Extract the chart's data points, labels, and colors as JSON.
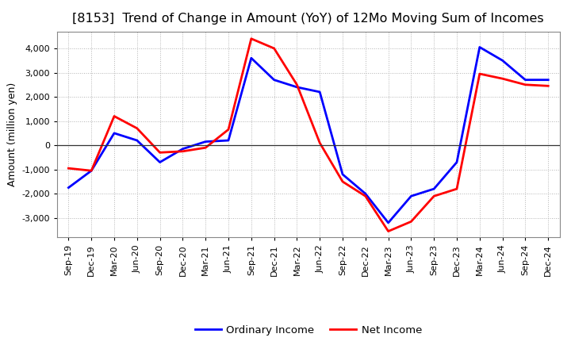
{
  "title": "[8153]  Trend of Change in Amount (YoY) of 12Mo Moving Sum of Incomes",
  "ylabel": "Amount (million yen)",
  "xlabel": "",
  "xlabels": [
    "Sep-19",
    "Dec-19",
    "Mar-20",
    "Jun-20",
    "Sep-20",
    "Dec-20",
    "Mar-21",
    "Jun-21",
    "Sep-21",
    "Dec-21",
    "Mar-22",
    "Jun-22",
    "Sep-22",
    "Dec-22",
    "Mar-23",
    "Jun-23",
    "Sep-23",
    "Dec-23",
    "Mar-24",
    "Jun-24",
    "Sep-24",
    "Dec-24"
  ],
  "ordinary_income": [
    -1750,
    -1050,
    500,
    200,
    -700,
    -150,
    150,
    200,
    3600,
    2700,
    2400,
    2200,
    -1200,
    -2000,
    -3200,
    -2100,
    -1800,
    -700,
    4050,
    3500,
    2700,
    2700
  ],
  "net_income": [
    -950,
    -1050,
    1200,
    700,
    -300,
    -250,
    -100,
    650,
    4400,
    4000,
    2500,
    100,
    -1500,
    -2100,
    -3550,
    -3150,
    -2100,
    -1800,
    2950,
    2750,
    2500,
    2450
  ],
  "ordinary_income_color": "#0000ff",
  "net_income_color": "#ff0000",
  "background_color": "#ffffff",
  "plot_bg_color": "#ffffff",
  "grid_color": "#aaaaaa",
  "ylim": [
    -3800,
    4700
  ],
  "yticks": [
    -3000,
    -2000,
    -1000,
    0,
    1000,
    2000,
    3000,
    4000
  ],
  "line_width": 2.0,
  "title_fontsize": 11.5,
  "axis_fontsize": 9,
  "tick_fontsize": 8,
  "legend_fontsize": 9.5
}
